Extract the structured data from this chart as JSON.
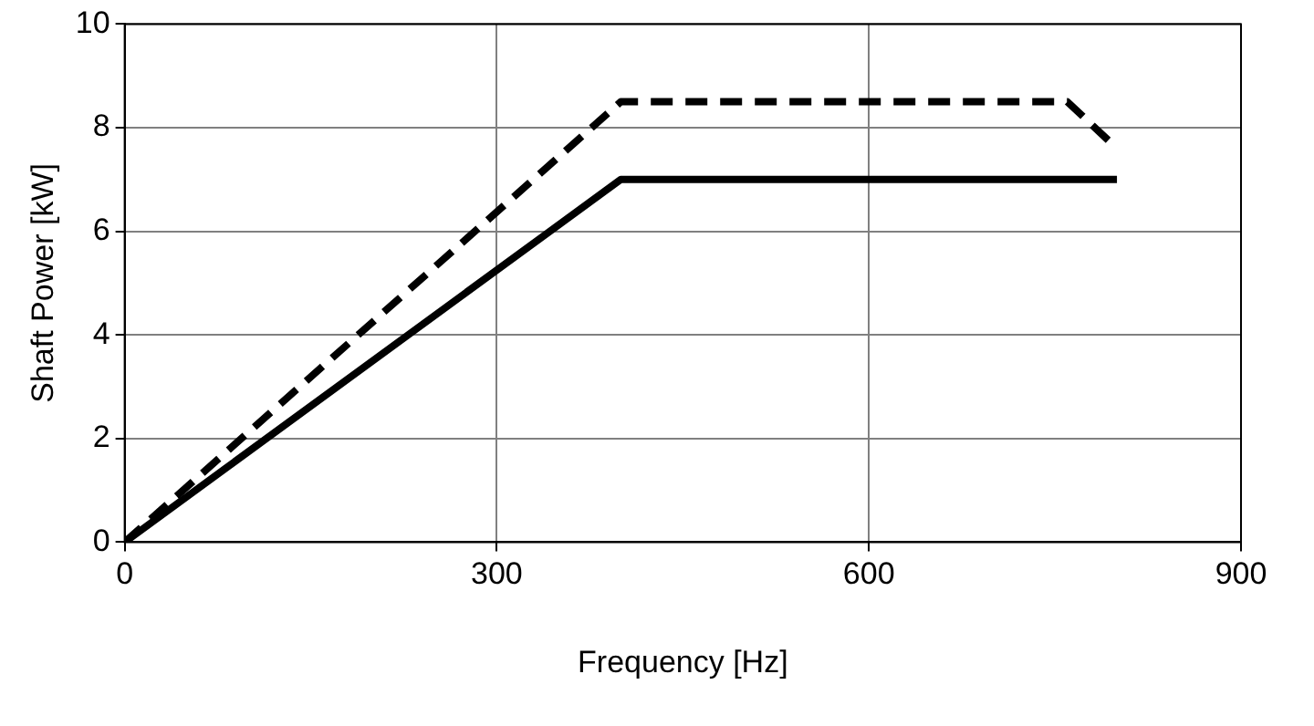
{
  "chart_data": {
    "type": "line",
    "xlabel": "Frequency [Hz]",
    "ylabel": "Shaft Power [kW]",
    "xlim": [
      0,
      900
    ],
    "xticks": [
      0,
      300,
      600,
      900
    ],
    "ylim": [
      0,
      10
    ],
    "yticks": [
      0,
      2,
      4,
      6,
      8,
      10
    ],
    "grid": true,
    "legend": false,
    "marker": "none",
    "series": [
      {
        "color": "#000000",
        "line_style": "solid",
        "x": [
          0,
          400,
          800
        ],
        "values": [
          0,
          7,
          7
        ]
      },
      {
        "color": "#000000",
        "line_style": "dashed",
        "x": [
          0,
          400,
          760,
          800
        ],
        "values": [
          0,
          8.5,
          8.5,
          7.6
        ]
      }
    ]
  }
}
